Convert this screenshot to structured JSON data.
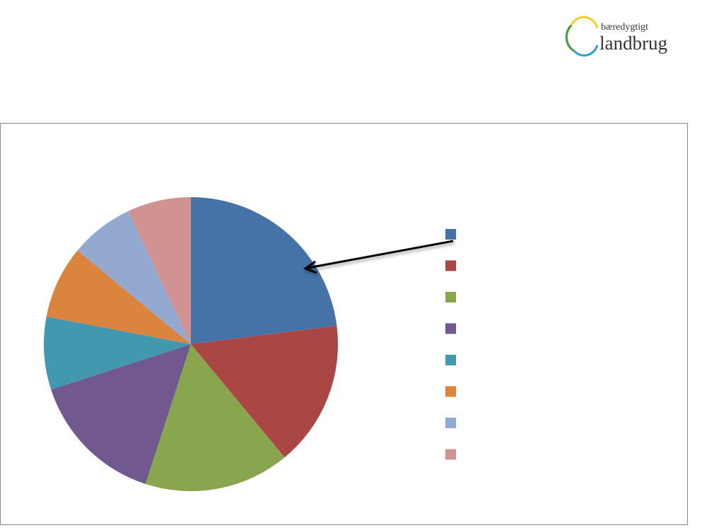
{
  "logo": {
    "top": "bæredygtigt",
    "bottom": "landbrug"
  },
  "chart_data": {
    "type": "pie",
    "categories": [
      null,
      null,
      null,
      null,
      null,
      null,
      null,
      null
    ],
    "values": [
      23,
      16,
      16,
      15,
      8,
      8,
      7,
      7
    ],
    "colors": [
      "#4572a7",
      "#aa4643",
      "#89a54e",
      "#71588f",
      "#4198af",
      "#db843d",
      "#93a9cf",
      "#d19392"
    ],
    "legend": "right"
  }
}
